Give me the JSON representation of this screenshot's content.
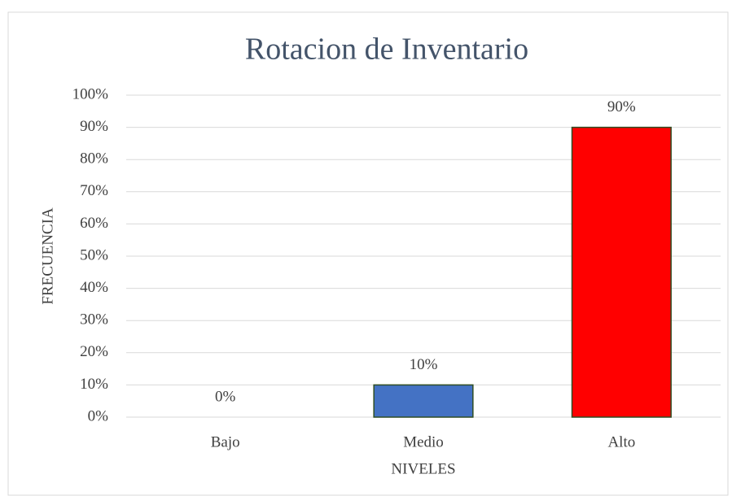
{
  "chart_data": {
    "type": "bar",
    "title": "Rotacion de Inventario",
    "xlabel": "NIVELES",
    "ylabel": "FRECUENCIA",
    "categories": [
      "Bajo",
      "Medio",
      "Alto"
    ],
    "values": [
      0,
      10,
      90
    ],
    "value_labels": [
      "0%",
      "10%",
      "90%"
    ],
    "colors": [
      "#4472c4",
      "#4472c4",
      "#ff0000"
    ],
    "ylim": [
      0,
      100
    ],
    "yticks": [
      {
        "value": 0,
        "label": "0%"
      },
      {
        "value": 10,
        "label": "10%"
      },
      {
        "value": 20,
        "label": "20%"
      },
      {
        "value": 30,
        "label": "30%"
      },
      {
        "value": 40,
        "label": "40%"
      },
      {
        "value": 50,
        "label": "50%"
      },
      {
        "value": 60,
        "label": "60%"
      },
      {
        "value": 70,
        "label": "70%"
      },
      {
        "value": 80,
        "label": "80%"
      },
      {
        "value": 90,
        "label": "90%"
      },
      {
        "value": 100,
        "label": "100%"
      }
    ],
    "grid": true
  }
}
